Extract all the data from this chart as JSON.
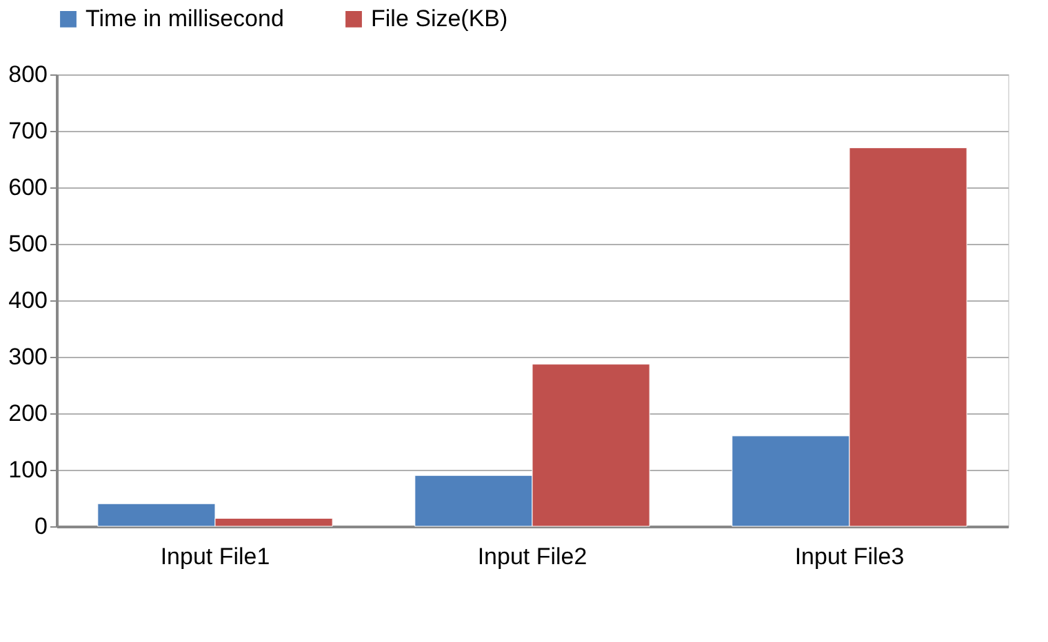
{
  "chart_data": {
    "type": "bar",
    "categories": [
      "Input File1",
      "Input File2",
      "Input File3"
    ],
    "series": [
      {
        "name": "Time in millisecond",
        "color": "#4f81bd",
        "values": [
          40,
          90,
          160
        ]
      },
      {
        "name": "File Size(KB)",
        "color": "#c0504d",
        "values": [
          14,
          287,
          670
        ]
      }
    ],
    "ylim": [
      0,
      800
    ],
    "yticks": [
      0,
      100,
      200,
      300,
      400,
      500,
      600,
      700,
      800
    ],
    "grid": "y",
    "legend": "top"
  }
}
